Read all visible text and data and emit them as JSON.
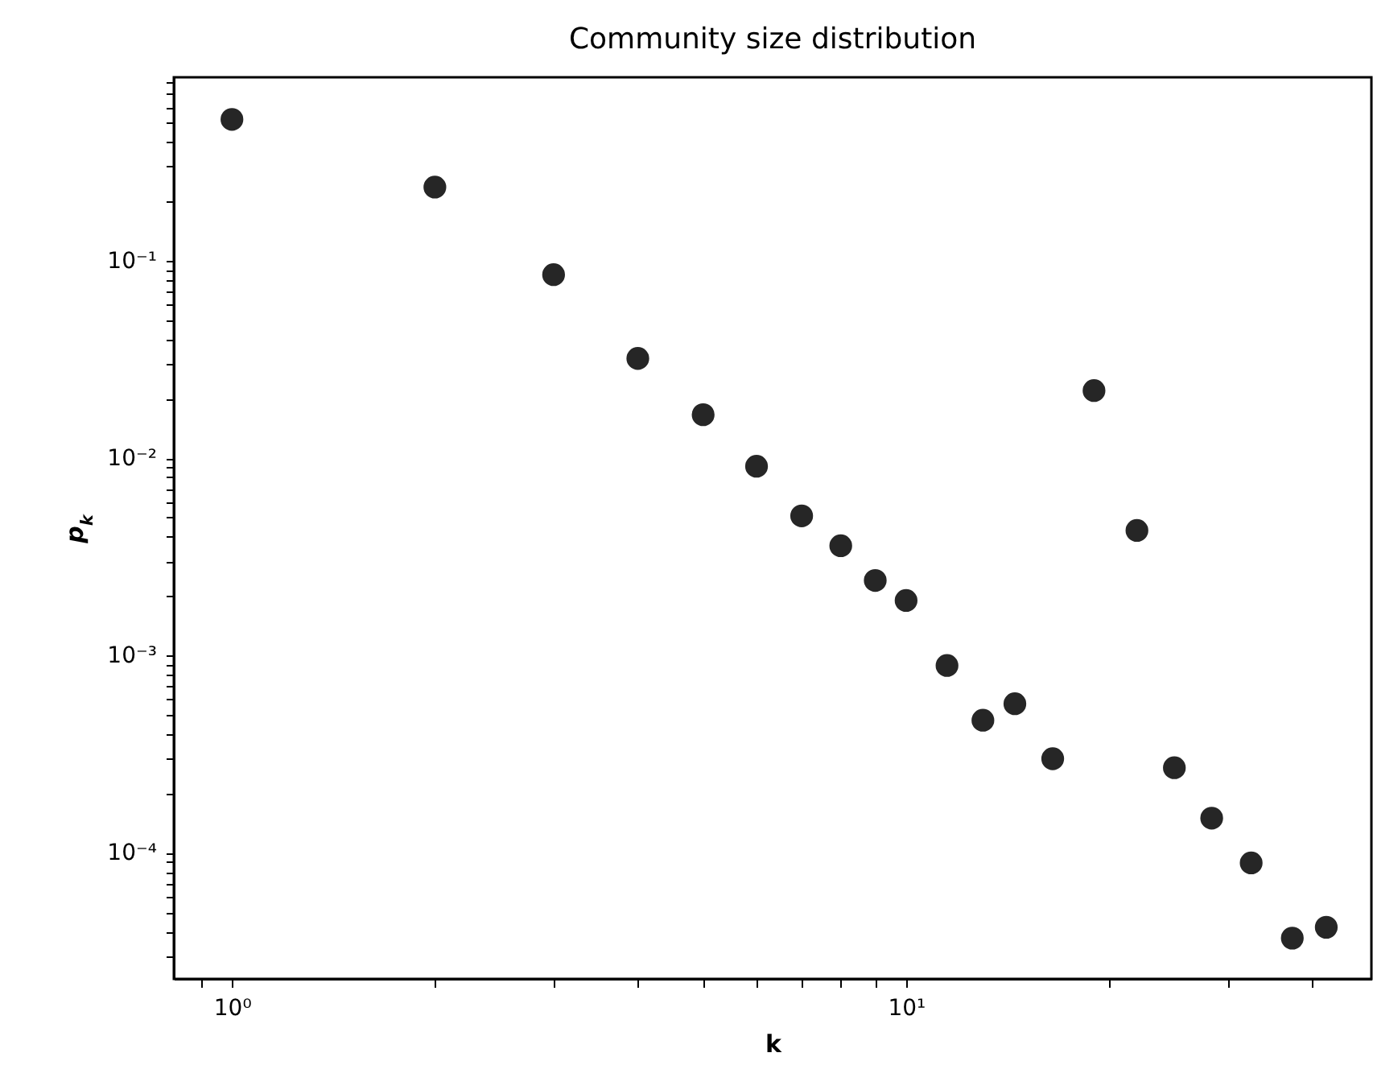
{
  "chart_data": {
    "type": "scatter",
    "title": "Community size distribution",
    "xlabel": "k",
    "ylabel": "p$_{k}$",
    "log": "xy",
    "grid": false,
    "marker": "circle",
    "x": [
      1,
      2,
      3,
      4,
      5,
      6,
      7,
      8,
      9,
      10,
      11.5,
      13,
      14.5,
      16.5,
      19,
      22,
      25,
      28.4,
      32.5,
      37.4,
      42
    ],
    "series": [
      {
        "color": "#262626",
        "values": [
          0.52,
          0.236,
          0.085,
          0.032,
          0.0166,
          0.0091,
          0.0051,
          0.0036,
          0.0024,
          0.0019,
          0.00089,
          0.00047,
          0.00057,
          0.0003,
          0.022,
          0.0043,
          0.00027,
          0.00015,
          8.9e-05,
          3.7e-05,
          4.2e-05
        ]
      }
    ],
    "xlim": [
      0.82,
      49
    ],
    "ylim": [
      2.3e-05,
      0.85
    ],
    "xticks": [
      {
        "value": 0.9,
        "label": null
      },
      {
        "value": 1,
        "label": "10⁰"
      },
      {
        "value": 2,
        "label": null
      },
      {
        "value": 3,
        "label": null
      },
      {
        "value": 4,
        "label": null
      },
      {
        "value": 5,
        "label": null
      },
      {
        "value": 6,
        "label": null
      },
      {
        "value": 7,
        "label": null
      },
      {
        "value": 8,
        "label": null
      },
      {
        "value": 9,
        "label": null
      },
      {
        "value": 10,
        "label": "10¹"
      },
      {
        "value": 20,
        "label": null
      },
      {
        "value": 30,
        "label": null
      },
      {
        "value": 40,
        "label": null
      }
    ],
    "yticks": [
      {
        "value": 3e-05,
        "label": null
      },
      {
        "value": 4e-05,
        "label": null
      },
      {
        "value": 5e-05,
        "label": null
      },
      {
        "value": 6e-05,
        "label": null
      },
      {
        "value": 7e-05,
        "label": null
      },
      {
        "value": 8e-05,
        "label": null
      },
      {
        "value": 9e-05,
        "label": null
      },
      {
        "value": 0.0001,
        "label": "10⁻⁴"
      },
      {
        "value": 0.0002,
        "label": null
      },
      {
        "value": 0.0003,
        "label": null
      },
      {
        "value": 0.0004,
        "label": null
      },
      {
        "value": 0.0005,
        "label": null
      },
      {
        "value": 0.0006,
        "label": null
      },
      {
        "value": 0.0007,
        "label": null
      },
      {
        "value": 0.0008,
        "label": null
      },
      {
        "value": 0.0009,
        "label": null
      },
      {
        "value": 0.001,
        "label": "10⁻³"
      },
      {
        "value": 0.002,
        "label": null
      },
      {
        "value": 0.003,
        "label": null
      },
      {
        "value": 0.004,
        "label": null
      },
      {
        "value": 0.005,
        "label": null
      },
      {
        "value": 0.006,
        "label": null
      },
      {
        "value": 0.007,
        "label": null
      },
      {
        "value": 0.008,
        "label": null
      },
      {
        "value": 0.009,
        "label": null
      },
      {
        "value": 0.01,
        "label": "10⁻²"
      },
      {
        "value": 0.02,
        "label": null
      },
      {
        "value": 0.03,
        "label": null
      },
      {
        "value": 0.04,
        "label": null
      },
      {
        "value": 0.05,
        "label": null
      },
      {
        "value": 0.06,
        "label": null
      },
      {
        "value": 0.07,
        "label": null
      },
      {
        "value": 0.08,
        "label": null
      },
      {
        "value": 0.09,
        "label": null
      },
      {
        "value": 0.1,
        "label": "10⁻¹"
      },
      {
        "value": 0.2,
        "label": null
      },
      {
        "value": 0.3,
        "label": null
      },
      {
        "value": 0.4,
        "label": null
      },
      {
        "value": 0.5,
        "label": null
      },
      {
        "value": 0.6,
        "label": null
      },
      {
        "value": 0.7,
        "label": null
      },
      {
        "value": 0.8,
        "label": null
      }
    ]
  }
}
